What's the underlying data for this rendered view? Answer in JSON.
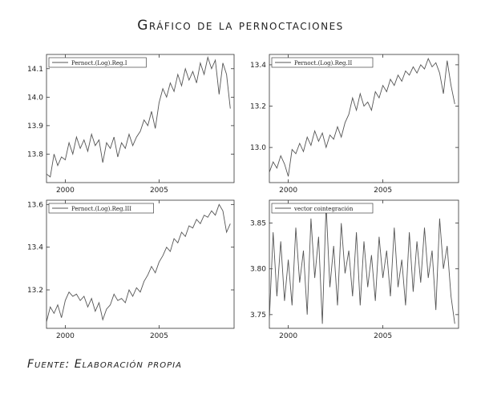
{
  "title": "Gráfico de la pernoctaciones",
  "source": "Fuente: Elaboración propia",
  "chart_data": [
    {
      "type": "line",
      "legend": "Pernoct.(Log).Reg.I",
      "legend_position": "top-left",
      "grid": false,
      "xlim": [
        1999,
        2009
      ],
      "ylim": [
        13.7,
        14.15
      ],
      "xticks": [
        2000,
        2005
      ],
      "xtick_labels": [
        "2000",
        "2005"
      ],
      "yticks": [
        13.8,
        13.9,
        14.0,
        14.1
      ],
      "ytick_labels": [
        "13.8",
        "13.9",
        "14.0",
        "14.1"
      ],
      "x": [
        1999.0,
        1999.2,
        1999.4,
        1999.6,
        1999.8,
        2000.0,
        2000.2,
        2000.4,
        2000.6,
        2000.8,
        2001.0,
        2001.2,
        2001.4,
        2001.6,
        2001.8,
        2002.0,
        2002.2,
        2002.4,
        2002.6,
        2002.8,
        2003.0,
        2003.2,
        2003.4,
        2003.6,
        2003.8,
        2004.0,
        2004.2,
        2004.4,
        2004.6,
        2004.8,
        2005.0,
        2005.2,
        2005.4,
        2005.6,
        2005.8,
        2006.0,
        2006.2,
        2006.4,
        2006.6,
        2006.8,
        2007.0,
        2007.2,
        2007.4,
        2007.6,
        2007.8,
        2008.0,
        2008.2,
        2008.4,
        2008.6,
        2008.8
      ],
      "values": [
        13.73,
        13.72,
        13.8,
        13.76,
        13.79,
        13.78,
        13.84,
        13.8,
        13.86,
        13.82,
        13.85,
        13.81,
        13.87,
        13.83,
        13.85,
        13.77,
        13.84,
        13.82,
        13.86,
        13.79,
        13.84,
        13.82,
        13.87,
        13.83,
        13.86,
        13.88,
        13.92,
        13.9,
        13.95,
        13.89,
        13.98,
        14.03,
        14.0,
        14.05,
        14.02,
        14.08,
        14.04,
        14.1,
        14.06,
        14.09,
        14.05,
        14.12,
        14.08,
        14.14,
        14.1,
        14.13,
        14.01,
        14.12,
        14.08,
        13.96
      ]
    },
    {
      "type": "line",
      "legend": "Pernoct.(Log).Reg.II",
      "legend_position": "top-left",
      "grid": false,
      "xlim": [
        1999,
        2009
      ],
      "ylim": [
        12.83,
        13.45
      ],
      "xticks": [
        2000,
        2005
      ],
      "xtick_labels": [
        "2000",
        "2005"
      ],
      "yticks": [
        13.0,
        13.2,
        13.4
      ],
      "ytick_labels": [
        "13.0",
        "13.2",
        "13.4"
      ],
      "x": [
        1999.0,
        1999.2,
        1999.4,
        1999.6,
        1999.8,
        2000.0,
        2000.2,
        2000.4,
        2000.6,
        2000.8,
        2001.0,
        2001.2,
        2001.4,
        2001.6,
        2001.8,
        2002.0,
        2002.2,
        2002.4,
        2002.6,
        2002.8,
        2003.0,
        2003.2,
        2003.4,
        2003.6,
        2003.8,
        2004.0,
        2004.2,
        2004.4,
        2004.6,
        2004.8,
        2005.0,
        2005.2,
        2005.4,
        2005.6,
        2005.8,
        2006.0,
        2006.2,
        2006.4,
        2006.6,
        2006.8,
        2007.0,
        2007.2,
        2007.4,
        2007.6,
        2007.8,
        2008.0,
        2008.2,
        2008.4,
        2008.6,
        2008.8
      ],
      "values": [
        12.88,
        12.93,
        12.9,
        12.96,
        12.92,
        12.86,
        12.99,
        12.97,
        13.02,
        12.98,
        13.05,
        13.01,
        13.08,
        13.03,
        13.07,
        13.0,
        13.06,
        13.04,
        13.1,
        13.05,
        13.12,
        13.16,
        13.24,
        13.18,
        13.26,
        13.2,
        13.22,
        13.18,
        13.27,
        13.24,
        13.3,
        13.27,
        13.33,
        13.3,
        13.35,
        13.32,
        13.37,
        13.35,
        13.39,
        13.36,
        13.4,
        13.38,
        13.43,
        13.39,
        13.41,
        13.36,
        13.26,
        13.42,
        13.3,
        13.21
      ]
    },
    {
      "type": "line",
      "legend": "Pernoct.(Log).Reg.III",
      "legend_position": "top-left",
      "grid": false,
      "xlim": [
        1999,
        2009
      ],
      "ylim": [
        13.02,
        13.62
      ],
      "xticks": [
        2000,
        2005
      ],
      "xtick_labels": [
        "2000",
        "2005"
      ],
      "yticks": [
        13.2,
        13.4,
        13.6
      ],
      "ytick_labels": [
        "13.2",
        "13.4",
        "13.6"
      ],
      "x": [
        1999.0,
        1999.2,
        1999.4,
        1999.6,
        1999.8,
        2000.0,
        2000.2,
        2000.4,
        2000.6,
        2000.8,
        2001.0,
        2001.2,
        2001.4,
        2001.6,
        2001.8,
        2002.0,
        2002.2,
        2002.4,
        2002.6,
        2002.8,
        2003.0,
        2003.2,
        2003.4,
        2003.6,
        2003.8,
        2004.0,
        2004.2,
        2004.4,
        2004.6,
        2004.8,
        2005.0,
        2005.2,
        2005.4,
        2005.6,
        2005.8,
        2006.0,
        2006.2,
        2006.4,
        2006.6,
        2006.8,
        2007.0,
        2007.2,
        2007.4,
        2007.6,
        2007.8,
        2008.0,
        2008.2,
        2008.4,
        2008.6,
        2008.8
      ],
      "values": [
        13.05,
        13.12,
        13.09,
        13.13,
        13.07,
        13.15,
        13.19,
        13.17,
        13.18,
        13.15,
        13.17,
        13.12,
        13.16,
        13.1,
        13.14,
        13.06,
        13.11,
        13.13,
        13.18,
        13.15,
        13.16,
        13.14,
        13.2,
        13.17,
        13.21,
        13.19,
        13.24,
        13.27,
        13.31,
        13.28,
        13.33,
        13.36,
        13.4,
        13.38,
        13.44,
        13.42,
        13.47,
        13.45,
        13.5,
        13.49,
        13.53,
        13.51,
        13.55,
        13.54,
        13.57,
        13.55,
        13.6,
        13.57,
        13.47,
        13.51
      ]
    },
    {
      "type": "line",
      "legend": "vector cointegración",
      "legend_position": "top-left",
      "grid": false,
      "xlim": [
        1999,
        2009
      ],
      "ylim": [
        3.735,
        3.875
      ],
      "xticks": [
        2000,
        2005
      ],
      "xtick_labels": [
        "2000",
        "2005"
      ],
      "yticks": [
        3.75,
        3.8,
        3.85
      ],
      "ytick_labels": [
        "3.75",
        "3.80",
        "3.85"
      ],
      "x": [
        1999.0,
        1999.2,
        1999.4,
        1999.6,
        1999.8,
        2000.0,
        2000.2,
        2000.4,
        2000.6,
        2000.8,
        2001.0,
        2001.2,
        2001.4,
        2001.6,
        2001.8,
        2002.0,
        2002.2,
        2002.4,
        2002.6,
        2002.8,
        2003.0,
        2003.2,
        2003.4,
        2003.6,
        2003.8,
        2004.0,
        2004.2,
        2004.4,
        2004.6,
        2004.8,
        2005.0,
        2005.2,
        2005.4,
        2005.6,
        2005.8,
        2006.0,
        2006.2,
        2006.4,
        2006.6,
        2006.8,
        2007.0,
        2007.2,
        2007.4,
        2007.6,
        2007.8,
        2008.0,
        2008.2,
        2008.4,
        2008.6,
        2008.8
      ],
      "values": [
        3.745,
        3.84,
        3.77,
        3.83,
        3.765,
        3.81,
        3.76,
        3.845,
        3.785,
        3.82,
        3.75,
        3.855,
        3.79,
        3.835,
        3.74,
        3.87,
        3.78,
        3.825,
        3.76,
        3.85,
        3.795,
        3.82,
        3.77,
        3.84,
        3.76,
        3.83,
        3.78,
        3.815,
        3.765,
        3.835,
        3.79,
        3.82,
        3.77,
        3.845,
        3.78,
        3.81,
        3.76,
        3.84,
        3.775,
        3.83,
        3.785,
        3.845,
        3.79,
        3.82,
        3.755,
        3.855,
        3.8,
        3.825,
        3.77,
        3.74
      ]
    }
  ]
}
